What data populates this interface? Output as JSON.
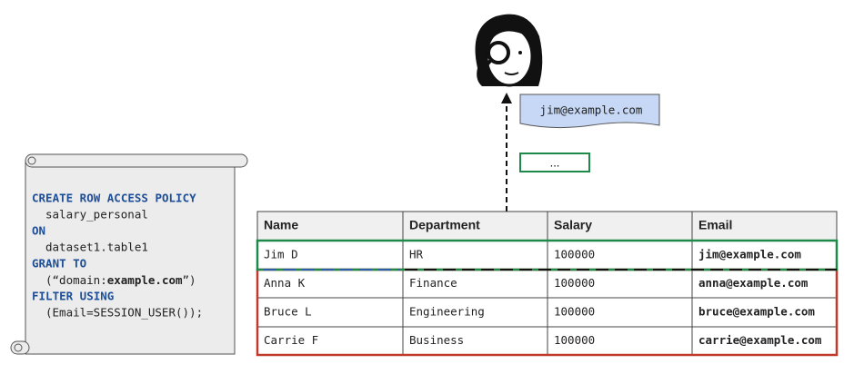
{
  "code": [
    "CREATE ROW ACCESS POLICY",
    "salary_personal",
    "ON",
    "dataset1.table1",
    "GRANT TO",
    "(“domain:",
    "example.com",
    "”)",
    "FILTER USING",
    "(Email=SESSION_USER());"
  ],
  "user_email": "jim@example.com",
  "ellipsis": "...",
  "table": {
    "headers": [
      "Name",
      "Department",
      "Salary",
      "Email"
    ],
    "rows": [
      [
        "Jim D",
        "HR",
        "100000",
        "jim@example.com"
      ],
      [
        "Anna K",
        "Finance",
        "100000",
        "anna@example.com"
      ],
      [
        "Bruce L",
        "Engineering",
        "100000",
        "bruce@example.com"
      ],
      [
        "Carrie F",
        "Business",
        "100000",
        "carrie@example.com"
      ]
    ]
  }
}
